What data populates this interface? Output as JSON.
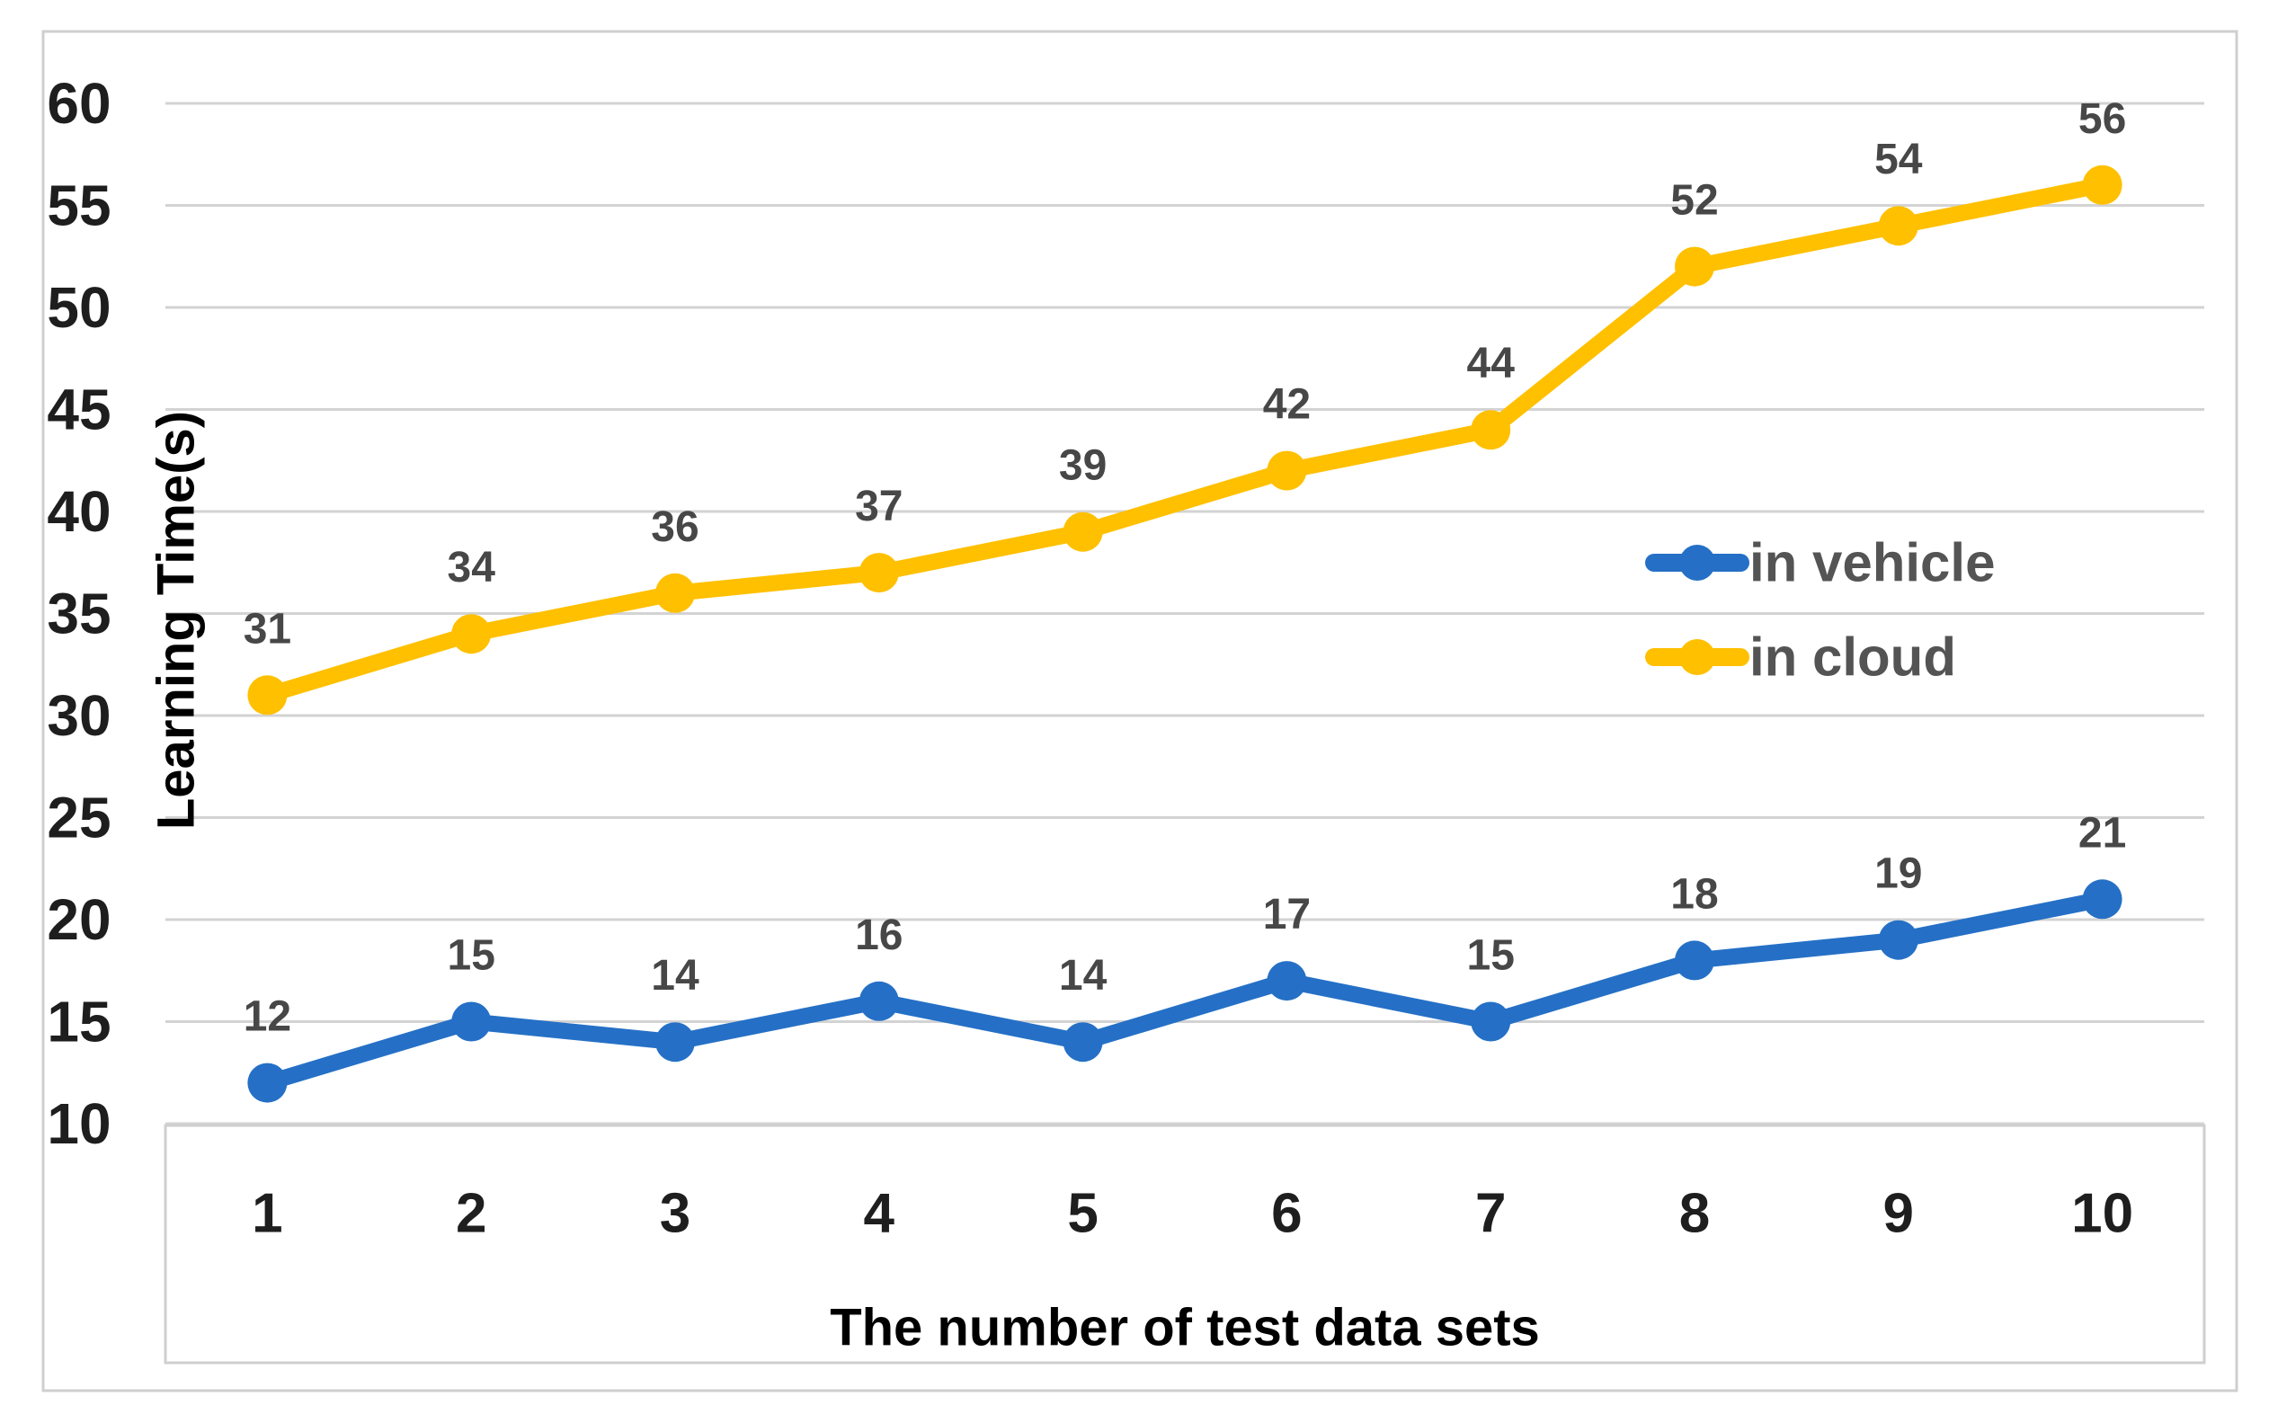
{
  "chart_data": {
    "type": "line",
    "categories": [
      "1",
      "2",
      "3",
      "4",
      "5",
      "6",
      "7",
      "8",
      "9",
      "10"
    ],
    "series": [
      {
        "name": "in vehicle",
        "color": "#2570C6",
        "values": [
          12,
          15,
          14,
          16,
          14,
          17,
          15,
          18,
          19,
          21
        ]
      },
      {
        "name": "in cloud",
        "color": "#FFC000",
        "values": [
          31,
          34,
          36,
          37,
          39,
          42,
          44,
          52,
          54,
          56
        ]
      }
    ],
    "title": "",
    "xlabel": "The number of test data sets",
    "ylabel": "Learning Time(s)",
    "ylim": [
      10,
      60
    ],
    "ytick_step": 5,
    "yticks": [
      10,
      15,
      20,
      25,
      30,
      35,
      40,
      45,
      50,
      55,
      60
    ],
    "grid": "horizontal",
    "legend_position": "center-right",
    "data_labels": true
  },
  "styles": {
    "grid_color": "#D3D3D3",
    "border_color": "#CFCFCF",
    "tick_color": "#1E1E1E",
    "data_label_color": "#474747",
    "legend_text_color": "#545454",
    "axis_title_color": "#000000",
    "background": "#FFFFFF"
  }
}
